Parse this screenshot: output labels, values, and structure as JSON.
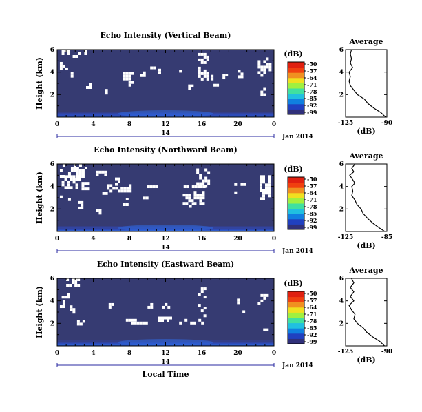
{
  "chart_data": [
    {
      "type": "heatmap",
      "title": "Echo Intensity (Vertical Beam)",
      "ylabel": "Height (km)",
      "xlim": [
        0,
        24
      ],
      "ylim": [
        0,
        6
      ],
      "x_ticks": [
        "0",
        "4",
        "8",
        "12",
        "16",
        "20",
        "0"
      ],
      "y_ticks": [
        "2",
        "4",
        "6"
      ],
      "date_label": "14",
      "date_suffix": "Jan 2014",
      "colorbar": {
        "unit": "(dB)",
        "ticks": [
          "-50",
          "-57",
          "-64",
          "-71",
          "-78",
          "-85",
          "-92",
          "-99"
        ],
        "range": [
          -99,
          -50
        ]
      },
      "average": {
        "title": "Average",
        "xlabel": "(dB)",
        "x_ticks": [
          "-125",
          "-90"
        ],
        "xlim": [
          -125,
          -90
        ],
        "y_ticks": [
          "2",
          "4",
          "6"
        ],
        "ylim": [
          0,
          6
        ],
        "profile": [
          [
            -91,
            0.0
          ],
          [
            -95,
            0.4
          ],
          [
            -101,
            0.8
          ],
          [
            -106,
            1.2
          ],
          [
            -109,
            1.6
          ],
          [
            -115,
            2.0
          ],
          [
            -118,
            2.4
          ],
          [
            -121,
            2.8
          ],
          [
            -122,
            3.2
          ],
          [
            -121,
            3.6
          ],
          [
            -122,
            4.0
          ],
          [
            -119,
            4.4
          ],
          [
            -121,
            4.8
          ],
          [
            -120,
            5.2
          ],
          [
            -121,
            5.6
          ],
          [
            -120,
            6.0
          ]
        ]
      },
      "gaps": [
        {
          "t": [
            0.5,
            2.5
          ],
          "h": [
            5.3,
            6.0
          ]
        },
        {
          "t": [
            2.7,
            3.2
          ],
          "h": [
            5.7,
            6.0
          ]
        },
        {
          "t": [
            0.3,
            1.0
          ],
          "h": [
            4.3,
            4.9
          ]
        },
        {
          "t": [
            1.5,
            2.1
          ],
          "h": [
            3.6,
            4.0
          ]
        },
        {
          "t": [
            3.2,
            3.6
          ],
          "h": [
            2.6,
            3.0
          ]
        },
        {
          "t": [
            5.0,
            5.4
          ],
          "h": [
            2.1,
            2.5
          ]
        },
        {
          "t": [
            7.3,
            8.5
          ],
          "h": [
            3.5,
            4.0
          ]
        },
        {
          "t": [
            7.9,
            8.3
          ],
          "h": [
            2.9,
            3.2
          ]
        },
        {
          "t": [
            9.2,
            9.6
          ],
          "h": [
            3.7,
            4.3
          ]
        },
        {
          "t": [
            10.3,
            10.7
          ],
          "h": [
            4.1,
            4.5
          ]
        },
        {
          "t": [
            11.2,
            11.8
          ],
          "h": [
            3.9,
            4.3
          ]
        },
        {
          "t": [
            13.5,
            14.0
          ],
          "h": [
            3.8,
            4.2
          ]
        },
        {
          "t": [
            15.6,
            16.8
          ],
          "h": [
            3.4,
            5.7
          ]
        },
        {
          "t": [
            17.0,
            17.4
          ],
          "h": [
            3.5,
            4.0
          ]
        },
        {
          "t": [
            17.3,
            17.7
          ],
          "h": [
            2.9,
            3.2
          ]
        },
        {
          "t": [
            18.3,
            18.8
          ],
          "h": [
            3.6,
            4.1
          ]
        },
        {
          "t": [
            20.0,
            20.6
          ],
          "h": [
            3.5,
            4.2
          ]
        },
        {
          "t": [
            22.2,
            23.6
          ],
          "h": [
            3.6,
            5.3
          ]
        },
        {
          "t": [
            22.5,
            22.9
          ],
          "h": [
            2.1,
            2.6
          ]
        },
        {
          "t": [
            14.5,
            14.9
          ],
          "h": [
            2.6,
            2.9
          ]
        }
      ]
    },
    {
      "type": "heatmap",
      "title": "Echo Intensity (Northward Beam)",
      "ylabel": "Height (km)",
      "xlim": [
        0,
        24
      ],
      "ylim": [
        0,
        6
      ],
      "x_ticks": [
        "0",
        "4",
        "8",
        "12",
        "16",
        "20",
        "0"
      ],
      "y_ticks": [
        "2",
        "4",
        "6"
      ],
      "date_label": "14",
      "date_suffix": "Jan 2014",
      "colorbar": {
        "unit": "(dB)",
        "ticks": [
          "-50",
          "-57",
          "-64",
          "-71",
          "-78",
          "-85",
          "-92",
          "-99"
        ],
        "range": [
          -99,
          -50
        ]
      },
      "average": {
        "title": "Average",
        "xlabel": "(dB)",
        "x_ticks": [
          "-125",
          "-85"
        ],
        "xlim": [
          -125,
          -85
        ],
        "y_ticks": [
          "2",
          "4",
          "6"
        ],
        "ylim": [
          0,
          6
        ],
        "profile": [
          [
            -87,
            0.0
          ],
          [
            -92,
            0.3
          ],
          [
            -98,
            0.7
          ],
          [
            -103,
            1.1
          ],
          [
            -108,
            1.6
          ],
          [
            -110,
            2.0
          ],
          [
            -114,
            2.4
          ],
          [
            -116,
            2.8
          ],
          [
            -119,
            3.2
          ],
          [
            -118,
            3.6
          ],
          [
            -119,
            4.0
          ],
          [
            -116,
            4.3
          ],
          [
            -118,
            4.6
          ],
          [
            -121,
            5.0
          ],
          [
            -117,
            5.3
          ],
          [
            -119,
            5.6
          ],
          [
            -116,
            6.0
          ]
        ]
      },
      "gaps": [
        {
          "t": [
            0.3,
            3.3
          ],
          "h": [
            5.0,
            6.0
          ]
        },
        {
          "t": [
            0.5,
            2.5
          ],
          "h": [
            4.0,
            5.0
          ]
        },
        {
          "t": [
            2.7,
            3.4
          ],
          "h": [
            3.9,
            4.4
          ]
        },
        {
          "t": [
            4.3,
            5.3
          ],
          "h": [
            5.0,
            5.4
          ]
        },
        {
          "t": [
            5.0,
            5.6
          ],
          "h": [
            3.1,
            3.5
          ]
        },
        {
          "t": [
            0.3,
            1.4
          ],
          "h": [
            2.8,
            3.2
          ]
        },
        {
          "t": [
            2.3,
            2.9
          ],
          "h": [
            2.2,
            2.7
          ]
        },
        {
          "t": [
            4.3,
            4.8
          ],
          "h": [
            1.6,
            2.0
          ]
        },
        {
          "t": [
            5.5,
            8.0
          ],
          "h": [
            3.7,
            4.2
          ]
        },
        {
          "t": [
            6.4,
            7.0
          ],
          "h": [
            4.1,
            4.8
          ]
        },
        {
          "t": [
            7.3,
            7.8
          ],
          "h": [
            2.3,
            3.0
          ]
        },
        {
          "t": [
            9.0,
            11.5
          ],
          "h": [
            3.9,
            4.1
          ]
        },
        {
          "t": [
            9.5,
            9.9
          ],
          "h": [
            2.8,
            3.1
          ]
        },
        {
          "t": [
            14.0,
            17.0
          ],
          "h": [
            3.9,
            4.1
          ]
        },
        {
          "t": [
            15.4,
            16.8
          ],
          "h": [
            4.1,
            5.6
          ]
        },
        {
          "t": [
            13.9,
            16.2
          ],
          "h": [
            2.6,
            3.6
          ]
        },
        {
          "t": [
            14.6,
            15.2
          ],
          "h": [
            2.3,
            2.6
          ]
        },
        {
          "t": [
            19.3,
            19.9
          ],
          "h": [
            3.4,
            4.3
          ]
        },
        {
          "t": [
            20.3,
            20.9
          ],
          "h": [
            3.9,
            4.3
          ]
        },
        {
          "t": [
            22.4,
            23.6
          ],
          "h": [
            3.0,
            5.0
          ]
        }
      ]
    },
    {
      "type": "heatmap",
      "title": "Echo Intensity (Eastward Beam)",
      "ylabel": "Height (km)",
      "xlabel": "Local Time",
      "xlim": [
        0,
        24
      ],
      "ylim": [
        0,
        6
      ],
      "x_ticks": [
        "0",
        "4",
        "8",
        "12",
        "16",
        "20",
        "0"
      ],
      "y_ticks": [
        "2",
        "4",
        "6"
      ],
      "date_label": "14",
      "date_suffix": "Jan 2014",
      "colorbar": {
        "unit": "(dB)",
        "ticks": [
          "-50",
          "-57",
          "-64",
          "-71",
          "-78",
          "-85",
          "-92",
          "-99"
        ],
        "range": [
          -99,
          -50
        ]
      },
      "average": {
        "title": "Average",
        "xlabel": "(dB)",
        "x_ticks": [
          "-125",
          "-90"
        ],
        "xlim": [
          -125,
          -90
        ],
        "y_ticks": [
          "2",
          "4",
          "6"
        ],
        "ylim": [
          0,
          6
        ],
        "profile": [
          [
            -92,
            0.0
          ],
          [
            -96,
            0.4
          ],
          [
            -102,
            0.8
          ],
          [
            -107,
            1.2
          ],
          [
            -110,
            1.6
          ],
          [
            -115,
            2.0
          ],
          [
            -118,
            2.4
          ],
          [
            -117,
            2.8
          ],
          [
            -120,
            3.2
          ],
          [
            -122,
            3.6
          ],
          [
            -118,
            4.0
          ],
          [
            -121,
            4.4
          ],
          [
            -118,
            4.8
          ],
          [
            -121,
            5.2
          ],
          [
            -118,
            5.6
          ],
          [
            -120,
            6.0
          ]
        ]
      },
      "gaps": [
        {
          "t": [
            1.0,
            2.5
          ],
          "h": [
            5.3,
            6.0
          ]
        },
        {
          "t": [
            0.5,
            1.2
          ],
          "h": [
            4.3,
            4.7
          ]
        },
        {
          "t": [
            0.3,
            0.7
          ],
          "h": [
            3.6,
            4.1
          ]
        },
        {
          "t": [
            1.4,
            2.0
          ],
          "h": [
            3.1,
            3.6
          ]
        },
        {
          "t": [
            2.2,
            3.0
          ],
          "h": [
            1.9,
            2.3
          ]
        },
        {
          "t": [
            5.7,
            6.1
          ],
          "h": [
            3.4,
            3.8
          ]
        },
        {
          "t": [
            7.3,
            9.8
          ],
          "h": [
            2.1,
            2.4
          ]
        },
        {
          "t": [
            9.7,
            10.4
          ],
          "h": [
            3.5,
            3.8
          ]
        },
        {
          "t": [
            11.6,
            12.3
          ],
          "h": [
            3.4,
            3.8
          ]
        },
        {
          "t": [
            11.2,
            13.0
          ],
          "h": [
            2.3,
            2.6
          ]
        },
        {
          "t": [
            13.5,
            16.0
          ],
          "h": [
            2.1,
            2.4
          ]
        },
        {
          "t": [
            15.6,
            16.5
          ],
          "h": [
            3.2,
            5.2
          ]
        },
        {
          "t": [
            16.2,
            16.8
          ],
          "h": [
            2.4,
            2.8
          ]
        },
        {
          "t": [
            18.2,
            18.7
          ],
          "h": [
            3.3,
            3.6
          ]
        },
        {
          "t": [
            20.2,
            20.7
          ],
          "h": [
            3.0,
            3.4
          ]
        },
        {
          "t": [
            22.2,
            23.4
          ],
          "h": [
            3.6,
            4.6
          ]
        },
        {
          "t": [
            22.8,
            23.4
          ],
          "h": [
            1.4,
            1.8
          ]
        },
        {
          "t": [
            19.6,
            20.0
          ],
          "h": [
            3.8,
            4.2
          ]
        }
      ]
    }
  ]
}
